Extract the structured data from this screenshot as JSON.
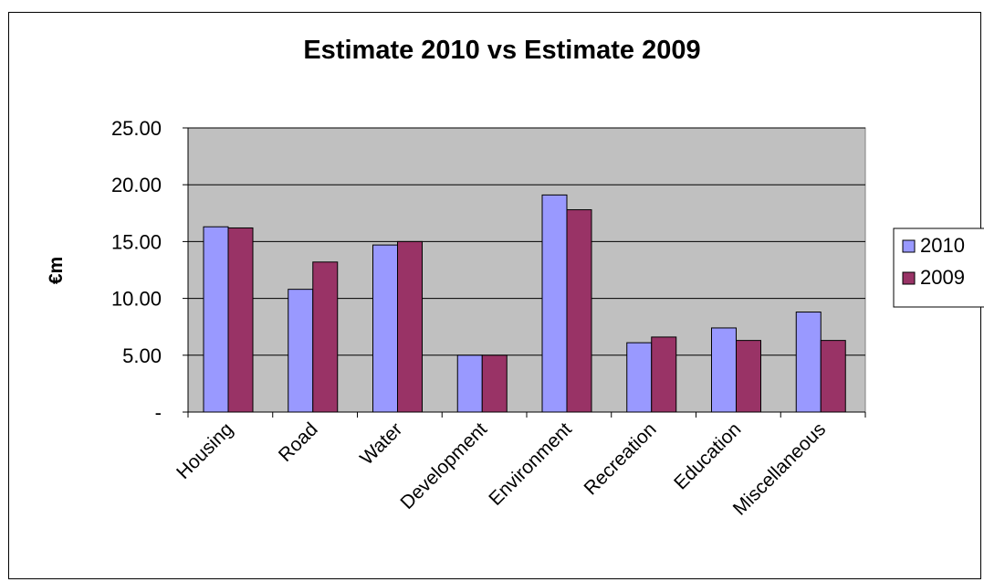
{
  "chart_data": {
    "type": "bar",
    "title": "Estimate 2010 vs  Estimate 2009",
    "ylabel": "€m",
    "xlabel": "",
    "categories": [
      "Housing",
      "Road",
      "Water",
      "Development",
      "Environment",
      "Recreation",
      "Education",
      "Miscellaneous"
    ],
    "series": [
      {
        "name": "2010",
        "color": "#9999ff",
        "values": [
          16.3,
          10.8,
          14.7,
          5.0,
          19.1,
          6.1,
          7.4,
          8.8
        ]
      },
      {
        "name": "2009",
        "color": "#993366",
        "values": [
          16.2,
          13.2,
          15.0,
          5.0,
          17.8,
          6.6,
          6.3,
          6.3
        ]
      }
    ],
    "ylim": [
      0,
      25
    ],
    "yticks": [
      0,
      5,
      10,
      15,
      20,
      25
    ],
    "ytick_labels": [
      "-",
      "5.00",
      "10.00",
      "15.00",
      "20.00",
      "25.00"
    ],
    "grid": true,
    "plot_background": "#c0c0c0",
    "legend_position": "right"
  }
}
